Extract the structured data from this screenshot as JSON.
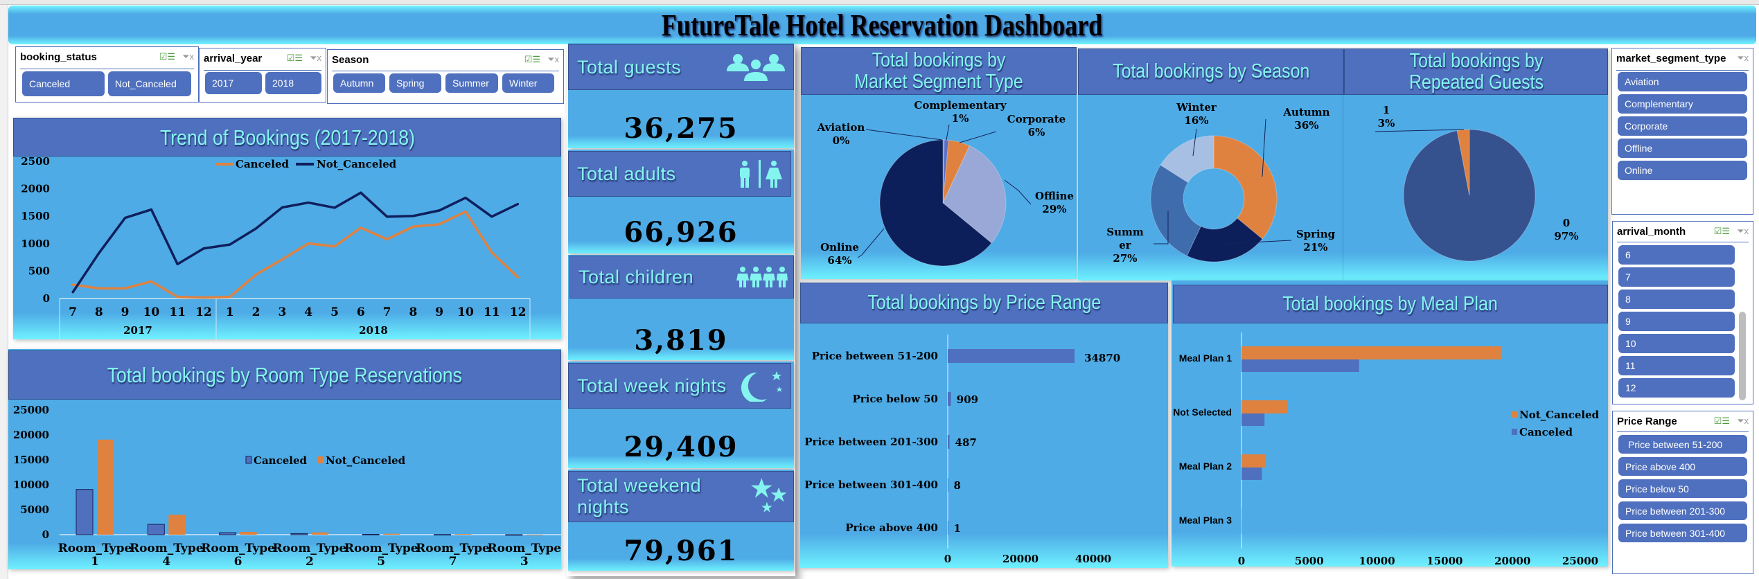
{
  "title": "FutureTale Hotel  Reservation Dashboard",
  "slicers": {
    "booking_status": {
      "title": "booking_status",
      "items": [
        "Canceled",
        "Not_Canceled"
      ]
    },
    "arrival_year": {
      "title": "arrival_year",
      "items": [
        "2017",
        "2018"
      ]
    },
    "season": {
      "title": "Season",
      "items": [
        "Autumn",
        "Spring",
        "Summer",
        "Winter"
      ]
    },
    "market_segment_type": {
      "title": "market_segment_type",
      "items": [
        "Aviation",
        "Complementary",
        "Corporate",
        "Offline",
        "Online"
      ]
    },
    "arrival_month": {
      "title": "arrival_month",
      "items": [
        "6",
        "7",
        "8",
        "9",
        "10",
        "11",
        "12"
      ]
    },
    "price_range": {
      "title": "Price Range",
      "items": [
        "Price between 51-200",
        "Price above 400",
        "Price below 50",
        "Price between 201-300",
        "Price between 301-400"
      ]
    },
    "icons": {
      "multi_select": "multi-select-icon",
      "clear_filter": "clear-filter-icon"
    }
  },
  "kpis": [
    {
      "label": "Total guests",
      "value": "36,275",
      "icon": "group-icon"
    },
    {
      "label": "Total adults",
      "value": "66,926",
      "icon": "man-woman-icon"
    },
    {
      "label": "Total children",
      "value": "3,819",
      "icon": "children-icon"
    },
    {
      "label": "Total week nights",
      "value": "29,409",
      "icon": "moon-stars-icon"
    },
    {
      "label": "Total weekend nights",
      "value": "79,961",
      "icon": "stars-icon"
    }
  ],
  "colors": {
    "header": "#4f70be",
    "body": "#4eabe6",
    "title_text": "#84f5ee",
    "canceled_line": "#e0823f",
    "not_canceled_line": "#0f1f5c",
    "canceled_bar": "#4f70be",
    "not_canceled_bar": "#e0823f"
  },
  "chart_data": [
    {
      "id": "trend",
      "type": "line",
      "title": "Trend of Bookings (2017-2018)",
      "categories": [
        "7",
        "8",
        "9",
        "10",
        "11",
        "12",
        "1",
        "2",
        "3",
        "4",
        "5",
        "6",
        "7",
        "8",
        "9",
        "10",
        "11",
        "12"
      ],
      "groups": [
        {
          "label": "2017",
          "count": 6
        },
        {
          "label": "2018",
          "count": 12
        }
      ],
      "series": [
        {
          "name": "Canceled",
          "color": "#e0823f",
          "values": [
            252,
            185,
            185,
            311,
            29,
            17,
            29,
            437,
            714,
            1004,
            950,
            1290,
            1080,
            1311,
            1353,
            1584,
            840,
            387
          ]
        },
        {
          "name": "Not_Canceled",
          "color": "#0f1f5c",
          "values": [
            113,
            828,
            1470,
            1622,
            626,
            912,
            983,
            1277,
            1660,
            1748,
            1655,
            1929,
            1492,
            1504,
            1605,
            1836,
            1492,
            1723
          ]
        }
      ],
      "yticks": [
        "0",
        "500",
        "1000",
        "1500",
        "2000",
        "2500"
      ],
      "ylim": [
        0,
        2500
      ],
      "legend": "top"
    },
    {
      "id": "room",
      "type": "bar",
      "title": "Total bookings by Room Type Reservations",
      "categories": [
        [
          "Room_Type",
          "1"
        ],
        [
          "Room_Type",
          "4"
        ],
        [
          "Room_Type",
          "6"
        ],
        [
          "Room_Type",
          "2"
        ],
        [
          "Room_Type",
          "5"
        ],
        [
          "Room_Type",
          "7"
        ],
        [
          "Room_Type",
          "3"
        ]
      ],
      "series": [
        {
          "name": "Canceled",
          "color": "#4f70be",
          "values": [
            9072,
            2069,
            406,
            228,
            72,
            36,
            2
          ]
        },
        {
          "name": "Not_Canceled",
          "color": "#e0823f",
          "values": [
            19058,
            3988,
            560,
            464,
            193,
            122,
            5
          ]
        }
      ],
      "yticks": [
        "0",
        "5000",
        "10000",
        "15000",
        "20000",
        "25000"
      ],
      "ylim": [
        0,
        25000
      ],
      "legend": "center"
    },
    {
      "id": "market",
      "type": "pie",
      "title": "Total bookings by Market Segment Type",
      "slices": [
        {
          "name": "Aviation",
          "pct_label": "0%",
          "share": 0.35,
          "color": "#7e83dc"
        },
        {
          "name": "Complementary",
          "pct_label": "1%",
          "share": 1.1,
          "color": "#5a6fc8"
        },
        {
          "name": "Corporate",
          "pct_label": "6%",
          "share": 5.5,
          "color": "#e0823f"
        },
        {
          "name": "Offline",
          "pct_label": "29%",
          "share": 29,
          "color": "#9aa8d8"
        },
        {
          "name": "Online",
          "pct_label": "64%",
          "share": 64,
          "color": "#0c1f5a"
        }
      ]
    },
    {
      "id": "season",
      "type": "pie",
      "title": "Total bookings by Season",
      "slices": [
        {
          "name": "Autumn",
          "pct_label": "36%",
          "share": 36,
          "color": "#e0823f"
        },
        {
          "name": "Spring",
          "pct_label": "21%",
          "share": 21,
          "color": "#0c1f5a"
        },
        {
          "name": "Summer",
          "pct_label": "27%",
          "share": 27,
          "color": "#3e6cad"
        },
        {
          "name": "Winter",
          "pct_label": "16%",
          "share": 16,
          "color": "#a6bfe2"
        }
      ]
    },
    {
      "id": "repeated",
      "type": "pie",
      "title": "Total bookings by Repeated Guests",
      "slices": [
        {
          "name": "0",
          "pct_label": "97%",
          "share": 97,
          "color": "#35528f"
        },
        {
          "name": "1",
          "pct_label": "3%",
          "share": 3,
          "color": "#e0823f"
        }
      ]
    },
    {
      "id": "price",
      "type": "bar",
      "orientation": "horizontal",
      "title": "Total bookings by Price Range",
      "categories": [
        "Price between 51-200",
        "Price below 50",
        "Price between 201-300",
        "Price between 301-400",
        "Price above 400"
      ],
      "values": [
        34870,
        909,
        487,
        8,
        1
      ],
      "value_labels": [
        "34870",
        "909",
        "487",
        "8",
        "1"
      ],
      "xticks": [
        "0",
        "20000",
        "40000"
      ],
      "xlim": [
        0,
        40000
      ]
    },
    {
      "id": "meal",
      "type": "bar",
      "orientation": "horizontal",
      "title": "Total bookings by Meal Plan",
      "categories": [
        "Meal Plan 1",
        "Not Selected",
        "Meal Plan 2",
        "Meal Plan 3"
      ],
      "series": [
        {
          "name": "Not_Canceled",
          "color": "#e0823f",
          "values": [
            19156,
            3431,
            1799,
            1
          ]
        },
        {
          "name": "Canceled",
          "color": "#4f70be",
          "values": [
            8679,
            1699,
            1506,
            4
          ]
        }
      ],
      "xticks": [
        "0",
        "5000",
        "10000",
        "15000",
        "20000",
        "25000"
      ],
      "xlim": [
        0,
        25000
      ],
      "legend": "right"
    }
  ]
}
